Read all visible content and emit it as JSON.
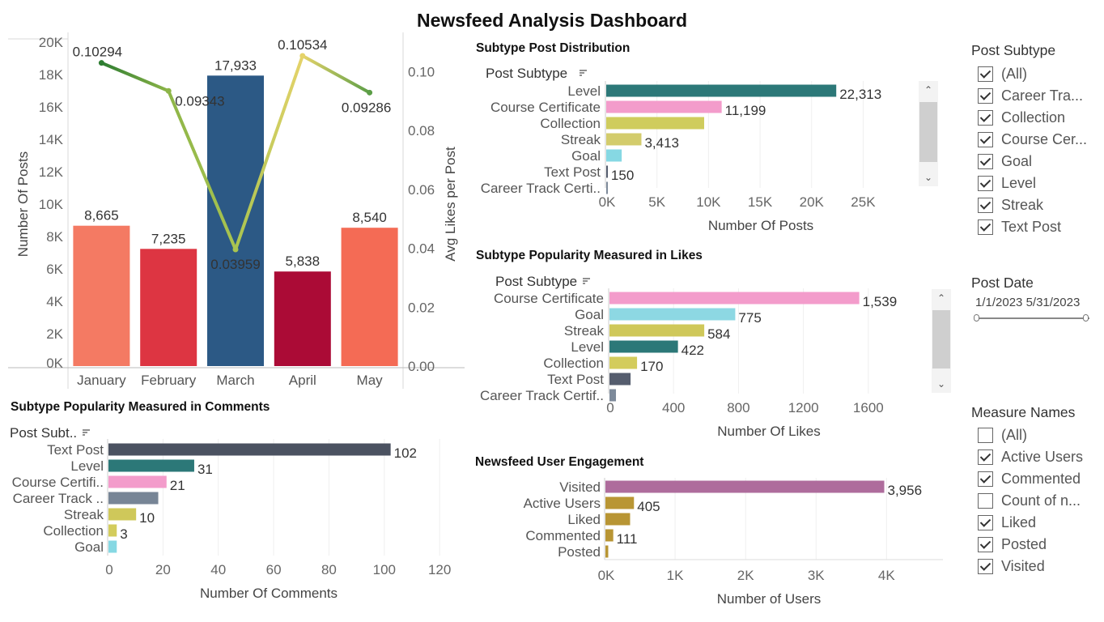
{
  "dashboard": {
    "title": "Newsfeed Analysis Dashboard"
  },
  "chart_data": [
    {
      "id": "monthly",
      "type": "bar",
      "title": "",
      "categories": [
        "January",
        "February",
        "March",
        "April",
        "May"
      ],
      "series": [
        {
          "name": "Number Of Posts",
          "axis": "left",
          "values": [
            8665,
            7235,
            17933,
            5838,
            8540
          ],
          "labels": [
            "8,665",
            "7,235",
            "17,933",
            "5,838",
            "8,540"
          ]
        },
        {
          "name": "Avg Likes per Post",
          "axis": "right",
          "type": "line",
          "values": [
            0.10294,
            0.09343,
            0.03959,
            0.10534,
            0.09286
          ],
          "labels": [
            "0.10294",
            "0.09343",
            "0.03959",
            "0.10534",
            "0.09286"
          ]
        }
      ],
      "ylabel": "Number Of Posts",
      "ylabel_right": "Avg Likes per Post",
      "ylim": [
        0,
        20000
      ],
      "ylim_right": [
        0,
        0.11
      ],
      "yticks": [
        0,
        2000,
        4000,
        6000,
        8000,
        10000,
        12000,
        14000,
        16000,
        18000,
        20000
      ],
      "ytick_labels": [
        "0K",
        "2K",
        "4K",
        "6K",
        "8K",
        "10K",
        "12K",
        "14K",
        "16K",
        "18K",
        "20K"
      ],
      "yticks_right": [
        0,
        0.02,
        0.04,
        0.06,
        0.08,
        0.1
      ],
      "ytick_labels_right": [
        "0.00",
        "0.02",
        "0.04",
        "0.06",
        "0.08",
        "0.10"
      ],
      "bar_colors": [
        "#f47a63",
        "#dd3542",
        "#2c5985",
        "#ab0b36",
        "#f46b55"
      ],
      "line_colors": [
        "#2e7d32",
        "#8db548",
        "#a9c450",
        "#e5d36a",
        "#5c9e47"
      ]
    },
    {
      "id": "subtype_posts",
      "type": "bar",
      "orientation": "horizontal",
      "title": "Subtype Post Distribution",
      "dimension_label": "Post Subtype",
      "categories": [
        "Level",
        "Course Certificate",
        "Collection",
        "Streak",
        "Goal",
        "Text Post",
        "Career Track Certi.."
      ],
      "values": [
        22313,
        11199,
        9500,
        3413,
        1500,
        150,
        40
      ],
      "labels": [
        "22,313",
        "11,199",
        "",
        "3,413",
        "",
        "150",
        ""
      ],
      "colors": [
        "#2c7878",
        "#f39ccb",
        "#cfcc5d",
        "#d3cc6c",
        "#86d8e3",
        "#555d6e",
        "#7d8a9a"
      ],
      "xlabel": "Number Of Posts",
      "xlim": [
        0,
        28500
      ],
      "xticks": [
        0,
        5000,
        10000,
        15000,
        20000,
        25000
      ],
      "xtick_labels": [
        "0K",
        "5K",
        "10K",
        "15K",
        "20K",
        "25K"
      ]
    },
    {
      "id": "subtype_likes",
      "type": "bar",
      "orientation": "horizontal",
      "title": "Subtype Popularity Measured in Likes",
      "dimension_label": "Post Subtype",
      "categories": [
        "Course Certificate",
        "Goal",
        "Streak",
        "Level",
        "Collection",
        "Text Post",
        "Career Track Certif.."
      ],
      "values": [
        1539,
        775,
        584,
        422,
        170,
        130,
        40
      ],
      "labels": [
        "1,539",
        "775",
        "584",
        "422",
        "170",
        "",
        ""
      ],
      "colors": [
        "#f39ccb",
        "#8dd8e3",
        "#cfc85a",
        "#2c7878",
        "#d3cc5c",
        "#555d6e",
        "#7d8a9a"
      ],
      "xlabel": "Number Of Likes",
      "xlim": [
        0,
        1900
      ],
      "xticks": [
        0,
        400,
        800,
        1200,
        1600
      ],
      "xtick_labels": [
        "0",
        "400",
        "800",
        "1200",
        "1600"
      ]
    },
    {
      "id": "subtype_comments",
      "type": "bar",
      "orientation": "horizontal",
      "title": "Subtype Popularity Measured in Comments",
      "dimension_label": "Post Subt..",
      "categories": [
        "Text Post",
        "Level",
        "Course Certifi..",
        "Career Track ..",
        "Streak",
        "Collection",
        "Goal"
      ],
      "values": [
        102,
        31,
        21,
        18,
        10,
        3,
        3
      ],
      "labels": [
        "102",
        "31",
        "21",
        "",
        "10",
        "3",
        ""
      ],
      "colors": [
        "#4b5261",
        "#2c7878",
        "#f39ccb",
        "#778596",
        "#cfc85a",
        "#d3cc5c",
        "#86d8e3"
      ],
      "xlabel": "Number Of Comments",
      "xlim": [
        0,
        122
      ],
      "xticks": [
        0,
        20,
        40,
        60,
        80,
        100,
        120
      ],
      "xtick_labels": [
        "0",
        "20",
        "40",
        "60",
        "80",
        "100",
        "120"
      ]
    },
    {
      "id": "engagement",
      "type": "bar",
      "orientation": "horizontal",
      "title": "Newsfeed User Engagement",
      "categories": [
        "Visited",
        "Active Users",
        "Liked",
        "Commented",
        "Posted"
      ],
      "values": [
        3956,
        405,
        350,
        111,
        40
      ],
      "labels": [
        "3,956",
        "405",
        "",
        "111",
        ""
      ],
      "colors": [
        "#ae6c9c",
        "#b99634",
        "#b89534",
        "#b89534",
        "#b89534"
      ],
      "xlabel": "Number of Users",
      "xlim": [
        0,
        4800
      ],
      "xticks": [
        0,
        1000,
        2000,
        3000,
        4000
      ],
      "xtick_labels": [
        "0K",
        "1K",
        "2K",
        "3K",
        "4K"
      ]
    }
  ],
  "filters": {
    "post_subtype": {
      "title": "Post Subtype",
      "items": [
        {
          "label": "(All)",
          "checked": true
        },
        {
          "label": "Career Tra...",
          "checked": true
        },
        {
          "label": "Collection",
          "checked": true
        },
        {
          "label": "Course Cer...",
          "checked": true
        },
        {
          "label": "Goal",
          "checked": true
        },
        {
          "label": "Level",
          "checked": true
        },
        {
          "label": "Streak",
          "checked": true
        },
        {
          "label": "Text Post",
          "checked": true
        }
      ]
    },
    "post_date": {
      "title": "Post Date",
      "start": "1/1/2023",
      "end": "5/31/2023"
    },
    "measure_names": {
      "title": "Measure Names",
      "items": [
        {
          "label": "(All)",
          "checked": false
        },
        {
          "label": "Active Users",
          "checked": true
        },
        {
          "label": "Commented",
          "checked": true
        },
        {
          "label": "Count of n...",
          "checked": false
        },
        {
          "label": "Liked",
          "checked": true
        },
        {
          "label": "Posted",
          "checked": true
        },
        {
          "label": "Visited",
          "checked": true
        }
      ]
    }
  }
}
